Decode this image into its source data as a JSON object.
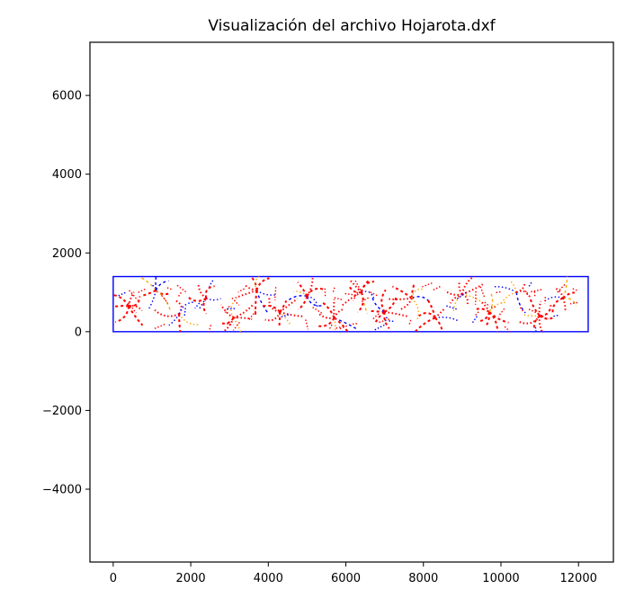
{
  "chart_data": {
    "type": "scatter",
    "title": "Visualización del archivo Hojarota.dxf",
    "xlabel": "",
    "ylabel": "",
    "xlim": [
      -600,
      12900
    ],
    "ylim": [
      -5850,
      7350
    ],
    "x_ticks": [
      0,
      2000,
      4000,
      6000,
      8000,
      10000,
      12000
    ],
    "y_ticks": [
      -4000,
      -2000,
      0,
      2000,
      4000,
      6000
    ],
    "x_tick_labels": [
      "0",
      "2000",
      "4000",
      "6000",
      "8000",
      "10000",
      "12000"
    ],
    "y_tick_labels": [
      "−4000",
      "−2000",
      "0",
      "2000",
      "4000",
      "6000"
    ],
    "grid": false,
    "legend": "none",
    "frame_rectangle": {
      "x0": 0,
      "y0": 0,
      "x1": 12250,
      "y1": 1400,
      "color": "#0000ff"
    },
    "series_colors": {
      "primary": "#ff0000",
      "secondary": "#0000ff",
      "accent": "#ffa500"
    },
    "leaf_groups": [
      {
        "cx": 400,
        "cy": 650
      },
      {
        "cx": 1100,
        "cy": 1050
      },
      {
        "cx": 1700,
        "cy": 450
      },
      {
        "cx": 2400,
        "cy": 850
      },
      {
        "cx": 3100,
        "cy": 350
      },
      {
        "cx": 3700,
        "cy": 1050
      },
      {
        "cx": 4300,
        "cy": 500
      },
      {
        "cx": 5000,
        "cy": 900
      },
      {
        "cx": 5700,
        "cy": 350
      },
      {
        "cx": 6400,
        "cy": 1000
      },
      {
        "cx": 7000,
        "cy": 500
      },
      {
        "cx": 7700,
        "cy": 850
      },
      {
        "cx": 8300,
        "cy": 350
      },
      {
        "cx": 9000,
        "cy": 950
      },
      {
        "cx": 9700,
        "cy": 500
      },
      {
        "cx": 10400,
        "cy": 1000
      },
      {
        "cx": 11000,
        "cy": 400
      },
      {
        "cx": 11600,
        "cy": 850
      }
    ]
  }
}
